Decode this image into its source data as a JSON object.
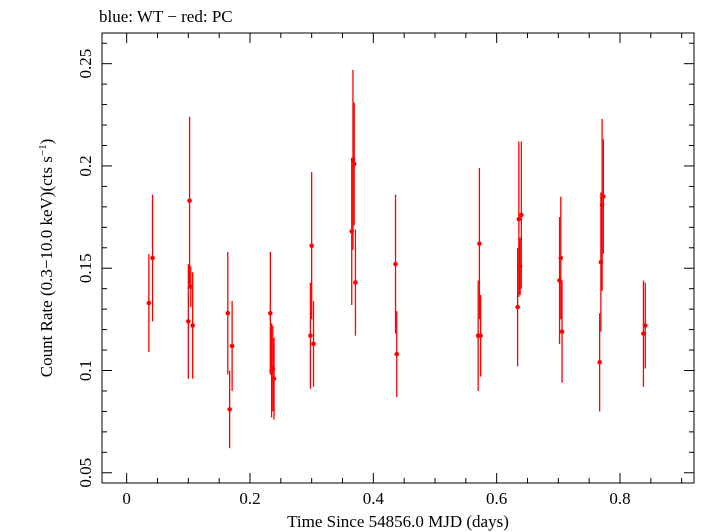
{
  "chart_data": {
    "type": "scatter",
    "title": "blue: WT − red: PC",
    "xlabel": "Time Since 54856.0 MJD (days)",
    "ylabel": {
      "main": "Count Rate (0.3−10.0 keV)(cts s",
      "sup": "−1",
      "end": ")"
    },
    "xlim": [
      -0.04,
      0.92
    ],
    "ylim": [
      0.045,
      0.265
    ],
    "x_ticks": [
      {
        "value": 0,
        "label": "0"
      },
      {
        "value": 0.2,
        "label": "0.2"
      },
      {
        "value": 0.4,
        "label": "0.4"
      },
      {
        "value": 0.6,
        "label": "0.6"
      },
      {
        "value": 0.8,
        "label": "0.8"
      }
    ],
    "y_ticks": [
      {
        "value": 0.05,
        "label": "0.05"
      },
      {
        "value": 0.1,
        "label": "0.1"
      },
      {
        "value": 0.15,
        "label": "0.15"
      },
      {
        "value": 0.2,
        "label": "0.2"
      },
      {
        "value": 0.25,
        "label": "0.25"
      }
    ],
    "x_minor_step": 0.05,
    "y_minor_step": 0.01,
    "grid": false,
    "series": [
      {
        "color": "#ff0000",
        "points": [
          {
            "x": 0.036,
            "y": 0.133,
            "err": 0.024
          },
          {
            "x": 0.042,
            "y": 0.155,
            "err": 0.031
          },
          {
            "x": 0.1,
            "y": 0.124,
            "err": 0.028
          },
          {
            "x": 0.102,
            "y": 0.183,
            "err": 0.041
          },
          {
            "x": 0.104,
            "y": 0.141,
            "err": 0.01
          },
          {
            "x": 0.107,
            "y": 0.122,
            "err": 0.026
          },
          {
            "x": 0.164,
            "y": 0.128,
            "err": 0.03
          },
          {
            "x": 0.167,
            "y": 0.081,
            "err": 0.019
          },
          {
            "x": 0.171,
            "y": 0.112,
            "err": 0.022
          },
          {
            "x": 0.233,
            "y": 0.128,
            "err": 0.03
          },
          {
            "x": 0.235,
            "y": 0.1,
            "err": 0.023
          },
          {
            "x": 0.237,
            "y": 0.101,
            "err": 0.021
          },
          {
            "x": 0.239,
            "y": 0.096,
            "err": 0.02
          },
          {
            "x": 0.298,
            "y": 0.117,
            "err": 0.026
          },
          {
            "x": 0.3,
            "y": 0.161,
            "err": 0.036
          },
          {
            "x": 0.303,
            "y": 0.113,
            "err": 0.021
          },
          {
            "x": 0.365,
            "y": 0.168,
            "err": 0.036
          },
          {
            "x": 0.367,
            "y": 0.203,
            "err": 0.044
          },
          {
            "x": 0.369,
            "y": 0.201,
            "err": 0.03
          },
          {
            "x": 0.371,
            "y": 0.143,
            "err": 0.026
          },
          {
            "x": 0.436,
            "y": 0.152,
            "err": 0.034
          },
          {
            "x": 0.438,
            "y": 0.108,
            "err": 0.021
          },
          {
            "x": 0.57,
            "y": 0.117,
            "err": 0.027
          },
          {
            "x": 0.572,
            "y": 0.162,
            "err": 0.037
          },
          {
            "x": 0.574,
            "y": 0.117,
            "err": 0.02
          },
          {
            "x": 0.634,
            "y": 0.131,
            "err": 0.029
          },
          {
            "x": 0.636,
            "y": 0.174,
            "err": 0.038
          },
          {
            "x": 0.638,
            "y": 0.151,
            "err": 0.014
          },
          {
            "x": 0.64,
            "y": 0.176,
            "err": 0.036
          },
          {
            "x": 0.702,
            "y": 0.144,
            "err": 0.031
          },
          {
            "x": 0.704,
            "y": 0.155,
            "err": 0.03
          },
          {
            "x": 0.706,
            "y": 0.119,
            "err": 0.025
          },
          {
            "x": 0.767,
            "y": 0.104,
            "err": 0.024
          },
          {
            "x": 0.769,
            "y": 0.153,
            "err": 0.034
          },
          {
            "x": 0.771,
            "y": 0.181,
            "err": 0.042
          },
          {
            "x": 0.773,
            "y": 0.185,
            "err": 0.028
          },
          {
            "x": 0.838,
            "y": 0.118,
            "err": 0.026
          },
          {
            "x": 0.841,
            "y": 0.122,
            "err": 0.021
          }
        ]
      }
    ]
  }
}
